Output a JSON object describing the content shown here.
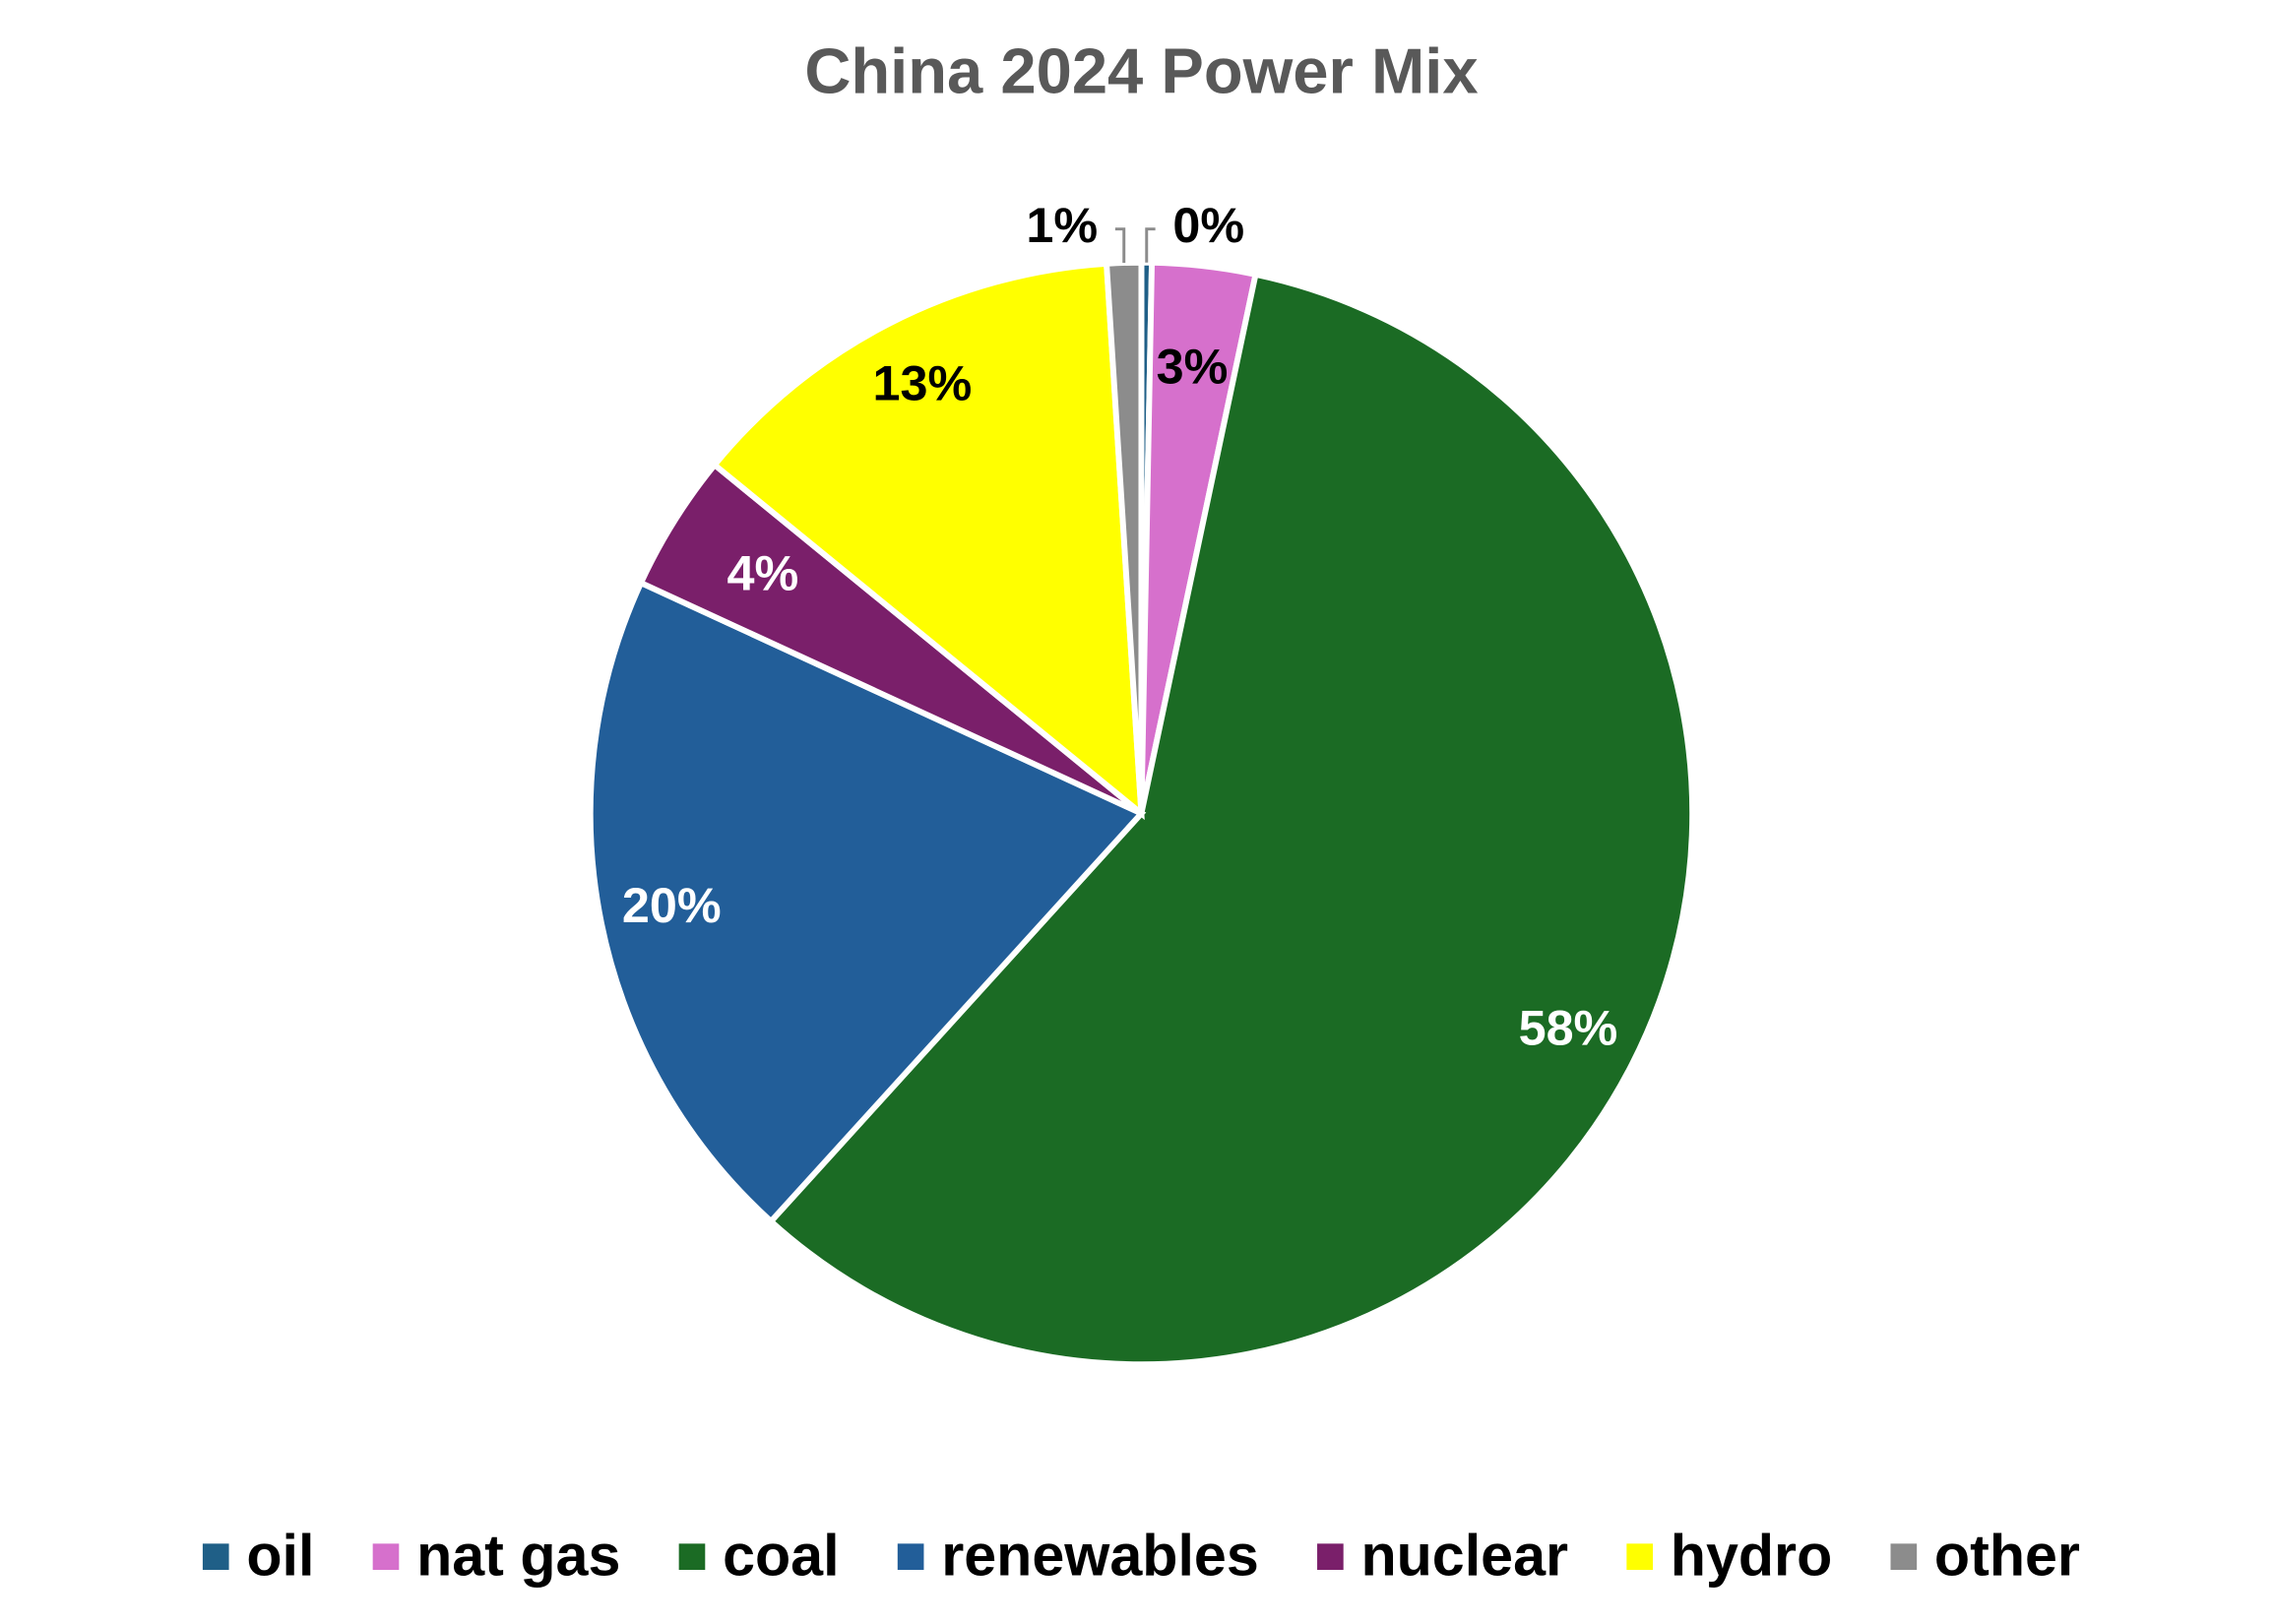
{
  "chart_data": {
    "type": "pie",
    "title": "China 2024 Power Mix",
    "categories": [
      "oil",
      "nat gas",
      "coal",
      "renewables",
      "nuclear",
      "hydro",
      "other"
    ],
    "values": [
      0.3,
      3,
      58,
      20,
      4,
      13,
      1
    ],
    "value_labels": [
      "0%",
      "3%",
      "58%",
      "20%",
      "4%",
      "13%",
      "1%"
    ],
    "colors": [
      "#1f5f87",
      "#d670cc",
      "#1b6b24",
      "#225e99",
      "#7a1f6a",
      "#ffff00",
      "#8c8c8c"
    ],
    "legend": "bottom"
  }
}
